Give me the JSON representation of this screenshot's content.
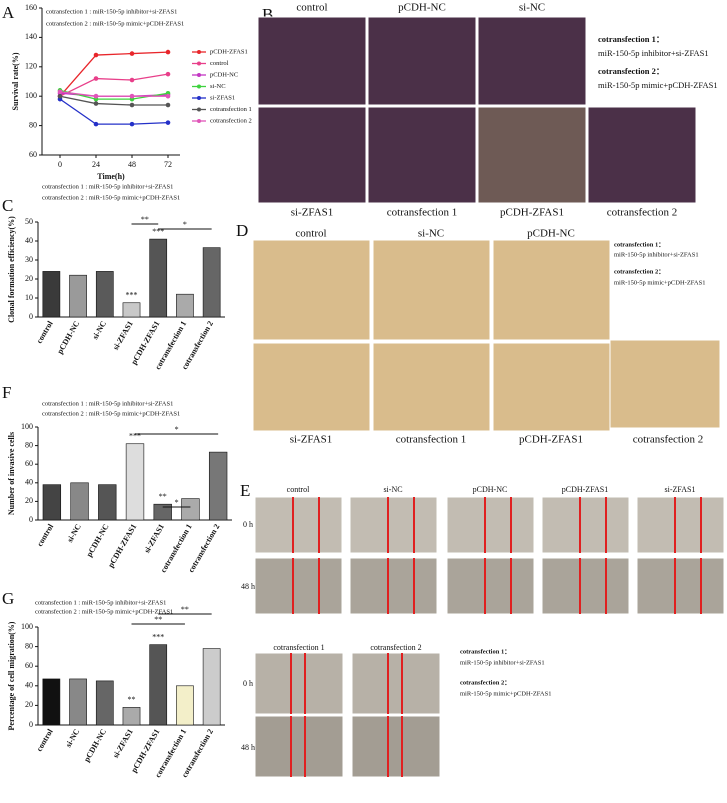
{
  "chart_data": [
    {
      "type": "line",
      "panel": "A",
      "xlabel": "Time(h)",
      "ylabel": "Survival rate(%)",
      "notes": [
        "cotransfection 1 : miR-150-5p inhibitor+si-ZFAS1",
        "cotransfection 2 : miR-150-5p mimic+pCDH-ZFAS1"
      ],
      "x": [
        0,
        24,
        48,
        72
      ],
      "xlim": [
        -12,
        80
      ],
      "xticks": [
        0,
        24,
        48,
        72
      ],
      "ylim": [
        60,
        160
      ],
      "yticks": [
        60,
        80,
        100,
        120,
        140,
        160
      ],
      "series": [
        {
          "name": "pCDH-ZFAS1",
          "color": "#e8262b",
          "values": [
            100,
            128,
            129,
            130
          ]
        },
        {
          "name": "control",
          "color": "#e83f8a",
          "values": [
            100,
            112,
            111,
            115
          ]
        },
        {
          "name": "pCDH-NC",
          "color": "#c437c4",
          "values": [
            102,
            100,
            100,
            101
          ]
        },
        {
          "name": "si-NC",
          "color": "#3ed23e",
          "values": [
            104,
            98,
            98,
            102
          ]
        },
        {
          "name": "si-ZFAS1",
          "color": "#2430c8",
          "values": [
            98,
            81,
            81,
            82
          ]
        },
        {
          "name": "cotransfection 1",
          "color": "#555555",
          "values": [
            100,
            95,
            94,
            94
          ]
        },
        {
          "name": "cotransfection 2",
          "color": "#e055b8",
          "values": [
            103,
            100,
            100,
            100
          ]
        }
      ]
    },
    {
      "type": "bar",
      "panel": "C",
      "ylabel": "Clonal formation efficiency(%)",
      "notes": [
        "cotransfection 1 : miR-150-5p inhibitor+si-ZFAS1",
        "cotransfection 2 : miR-150-5p mimic+pCDH-ZFAS1"
      ],
      "categories": [
        "control",
        "pCDH-NC",
        "si-NC",
        "si-ZFAS1",
        "pCDH-ZFAS1",
        "cotransfection 1",
        "cotransfection 2"
      ],
      "values": [
        24,
        22,
        24,
        7.5,
        41,
        12,
        36.5
      ],
      "colors": [
        "#3a3a3a",
        "#9a9a9a",
        "#5a5a5a",
        "#c8c8c8",
        "#555555",
        "#aaaaaa",
        "#666666"
      ],
      "significance": [
        null,
        null,
        null,
        "***",
        "***",
        null,
        null
      ],
      "brackets": [
        "**",
        "*"
      ],
      "ylim": [
        0,
        50
      ],
      "yticks": [
        0,
        10,
        20,
        30,
        40,
        50
      ]
    },
    {
      "type": "bar",
      "panel": "F",
      "ylabel": "Number of invasive cells",
      "notes": [
        "cotransfection 1 :   miR-150-5p inhibitor+si-ZFAS1",
        "cotransfection 2 :   miR-150-5p mimic+pCDH-ZFAS1"
      ],
      "categories": [
        "control",
        "si-NC",
        "pCDH-NC",
        "pCDH-ZFAS1",
        "si-ZFAS1",
        "cotransfection 1",
        "cotransfection 2"
      ],
      "values": [
        38,
        40,
        38,
        82,
        17,
        23,
        73
      ],
      "colors": [
        "#444444",
        "#888888",
        "#555555",
        "#dddddd",
        "#666666",
        "#aaaaaa",
        "#777777"
      ],
      "significance": [
        null,
        null,
        null,
        "***",
        "**",
        null,
        null
      ],
      "brackets": [
        "*",
        "*"
      ],
      "ylim": [
        0,
        100
      ],
      "yticks": [
        0,
        20,
        40,
        60,
        80,
        100
      ]
    },
    {
      "type": "bar",
      "panel": "G",
      "ylabel": "Percentage of cell migration(%)",
      "notes": [
        "cotransfection 1 :   miR-150-5p inhibitor+si-ZFAS1",
        "cotransfection 2 :   miR-150-5p mimic+pCDH-ZFAS1"
      ],
      "categories": [
        "control",
        "si-NC",
        "pCDH-NC",
        "si-ZFAS1",
        "pCDH-ZFAS1",
        "cotransfection 1",
        "cotransfection 2"
      ],
      "values": [
        47,
        47,
        45,
        18,
        82,
        40,
        78
      ],
      "colors": [
        "#111111",
        "#888888",
        "#666666",
        "#aaaaaa",
        "#555555",
        "#f3efc9",
        "#cccccc"
      ],
      "significance": [
        null,
        null,
        null,
        "**",
        "***",
        null,
        null
      ],
      "brackets": [
        "**",
        "**"
      ],
      "ylim": [
        0,
        100
      ],
      "yticks": [
        0,
        20,
        40,
        60,
        80,
        100
      ]
    }
  ],
  "image_panels": {
    "B": {
      "letter": "B",
      "top": [
        "control",
        "pCDH-NC",
        "si-NC"
      ],
      "bottom": [
        "si-ZFAS1",
        "cotransfection 1",
        "pCDH-ZFAS1",
        "cotransfection 2"
      ],
      "notes": [
        "cotransfection 1：",
        "miR-150-5p inhibitor+si-ZFAS1",
        "cotransfection 2：",
        "miR-150-5p mimic+pCDH-ZFAS1"
      ]
    },
    "D": {
      "letter": "D",
      "top": [
        "control",
        "si-NC",
        "pCDH-NC"
      ],
      "bottom": [
        "si-ZFAS1",
        "cotransfection 1",
        "pCDH-ZFAS1",
        "cotransfection 2"
      ],
      "notes": [
        "cotransfection 1：",
        "miR-150-5p inhibitor+si-ZFAS1",
        "cotransfection 2：",
        "miR-150-5p mimic+pCDH-ZFAS1"
      ]
    },
    "E": {
      "letter": "E",
      "top": [
        "control",
        "si-NC",
        "pCDH-NC",
        "pCDH-ZFAS1",
        "si-ZFAS1"
      ],
      "rows": [
        "0 h",
        "48 h"
      ],
      "top2": [
        "cotransfection 1",
        "cotransfection 2"
      ],
      "rows2": [
        "0 h",
        "48 h"
      ],
      "notes": [
        "cotransfection 1：",
        "miR-150-5p inhibitor+si-ZFAS1",
        "cotransfection 2：",
        "miR-150-5p mimic+pCDH-ZFAS1"
      ]
    }
  }
}
